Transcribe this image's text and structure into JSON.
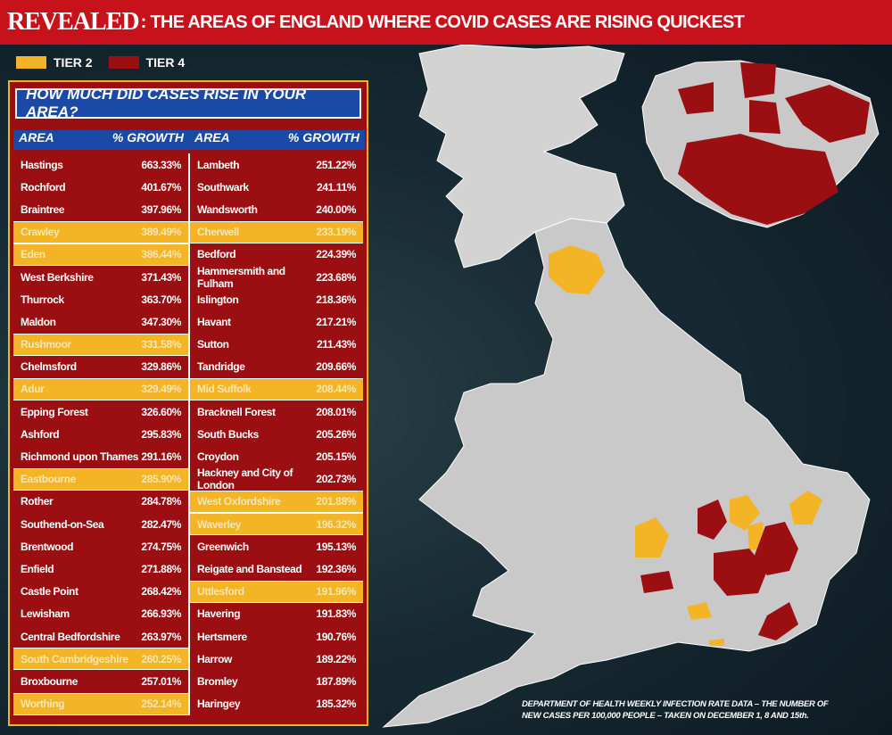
{
  "title": {
    "prefix": "REVEALED",
    "suffix": ": THE AREAS OF ENGLAND WHERE COVID CASES ARE RISING QUICKEST"
  },
  "legend": [
    {
      "label": "TIER 2",
      "color": "#f3b426"
    },
    {
      "label": "TIER 4",
      "color": "#9b0f12"
    }
  ],
  "table": {
    "question": "HOW MUCH DID CASES RISE IN YOUR AREA?",
    "headers": {
      "area": "AREA",
      "growth": "% GROWTH"
    },
    "left": [
      {
        "area": "Hastings",
        "growth": "663.33%",
        "tier": 4
      },
      {
        "area": "Rochford",
        "growth": "401.67%",
        "tier": 4
      },
      {
        "area": "Braintree",
        "growth": "397.96%",
        "tier": 4
      },
      {
        "area": "Crawley",
        "growth": "389.49%",
        "tier": 2
      },
      {
        "area": "Eden",
        "growth": "386.44%",
        "tier": 2
      },
      {
        "area": "West Berkshire",
        "growth": "371.43%",
        "tier": 4
      },
      {
        "area": "Thurrock",
        "growth": "363.70%",
        "tier": 4
      },
      {
        "area": "Maldon",
        "growth": "347.30%",
        "tier": 4
      },
      {
        "area": "Rushmoor",
        "growth": "331.58%",
        "tier": 2
      },
      {
        "area": "Chelmsford",
        "growth": "329.86%",
        "tier": 4
      },
      {
        "area": "Adur",
        "growth": "329.49%",
        "tier": 2
      },
      {
        "area": "Epping Forest",
        "growth": "326.60%",
        "tier": 4
      },
      {
        "area": "Ashford",
        "growth": "295.83%",
        "tier": 4
      },
      {
        "area": "Richmond upon Thames",
        "growth": "291.16%",
        "tier": 4
      },
      {
        "area": "Eastbourne",
        "growth": "285.90%",
        "tier": 2
      },
      {
        "area": "Rother",
        "growth": "284.78%",
        "tier": 4
      },
      {
        "area": "Southend-on-Sea",
        "growth": "282.47%",
        "tier": 4
      },
      {
        "area": "Brentwood",
        "growth": "274.75%",
        "tier": 4
      },
      {
        "area": "Enfield",
        "growth": "271.88%",
        "tier": 4
      },
      {
        "area": "Castle Point",
        "growth": "268.42%",
        "tier": 4
      },
      {
        "area": "Lewisham",
        "growth": "266.93%",
        "tier": 4
      },
      {
        "area": "Central Bedfordshire",
        "growth": "263.97%",
        "tier": 4
      },
      {
        "area": "South Cambridgeshire",
        "growth": "260.25%",
        "tier": 2
      },
      {
        "area": "Broxbourne",
        "growth": "257.01%",
        "tier": 4
      },
      {
        "area": "Worthing",
        "growth": "252.14%",
        "tier": 2
      }
    ],
    "right": [
      {
        "area": "Lambeth",
        "growth": "251.22%",
        "tier": 4
      },
      {
        "area": "Southwark",
        "growth": "241.11%",
        "tier": 4
      },
      {
        "area": "Wandsworth",
        "growth": "240.00%",
        "tier": 4
      },
      {
        "area": "Cherwell",
        "growth": "233.19%",
        "tier": 2
      },
      {
        "area": "Bedford",
        "growth": "224.39%",
        "tier": 4
      },
      {
        "area": "Hammersmith and Fulham",
        "growth": "223.68%",
        "tier": 4
      },
      {
        "area": "Islington",
        "growth": "218.36%",
        "tier": 4
      },
      {
        "area": "Havant",
        "growth": "217.21%",
        "tier": 4
      },
      {
        "area": "Sutton",
        "growth": "211.43%",
        "tier": 4
      },
      {
        "area": "Tandridge",
        "growth": "209.66%",
        "tier": 4
      },
      {
        "area": "Mid Suffolk",
        "growth": "208.44%",
        "tier": 2
      },
      {
        "area": "Bracknell Forest",
        "growth": "208.01%",
        "tier": 4
      },
      {
        "area": "South Bucks",
        "growth": "205.26%",
        "tier": 4
      },
      {
        "area": "Croydon",
        "growth": "205.15%",
        "tier": 4
      },
      {
        "area": "Hackney and City of London",
        "growth": "202.73%",
        "tier": 4
      },
      {
        "area": "West Oxfordshire",
        "growth": "201.88%",
        "tier": 2
      },
      {
        "area": "Waverley",
        "growth": "196.32%",
        "tier": 2
      },
      {
        "area": "Greenwich",
        "growth": "195.13%",
        "tier": 4
      },
      {
        "area": "Reigate and Banstead",
        "growth": "192.36%",
        "tier": 4
      },
      {
        "area": "Uttlesford",
        "growth": "191.96%",
        "tier": 2
      },
      {
        "area": "Havering",
        "growth": "191.83%",
        "tier": 4
      },
      {
        "area": "Hertsmere",
        "growth": "190.76%",
        "tier": 4
      },
      {
        "area": "Harrow",
        "growth": "189.22%",
        "tier": 4
      },
      {
        "area": "Bromley",
        "growth": "187.89%",
        "tier": 4
      },
      {
        "area": "Haringey",
        "growth": "185.32%",
        "tier": 4
      }
    ]
  },
  "source": {
    "line1": "DEPARTMENT OF HEALTH WEEKLY INFECTION RATE DATA – THE NUMBER OF",
    "line2": "NEW CASES PER 100,000 PEOPLE – TAKEN ON DECEMBER 1, 8 AND 15th."
  }
}
